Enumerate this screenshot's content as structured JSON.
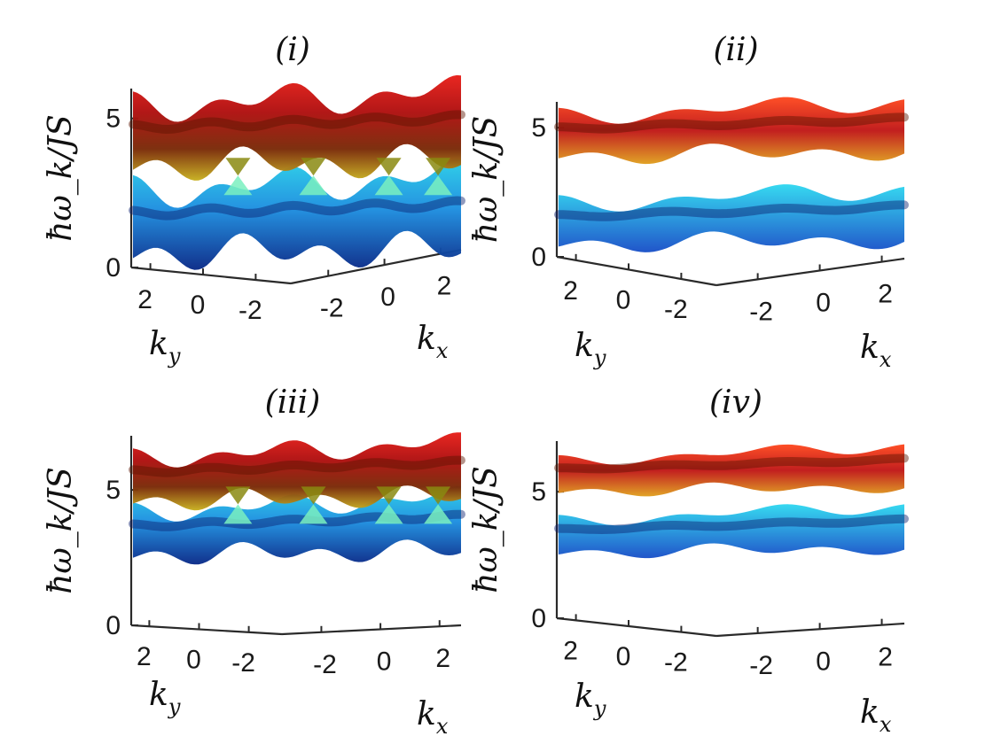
{
  "chart_data": [
    {
      "type": "surface",
      "panel_label": "(i)",
      "ylabel": "ħω_k/JS",
      "zticks": [
        "0",
        "5"
      ],
      "zlim": [
        0,
        6
      ],
      "xlabel": "k_x",
      "ylabel_k": "k_y",
      "kx_ticks": [
        "-2",
        "0",
        "2"
      ],
      "ky_ticks": [
        "2",
        "0",
        "-2"
      ],
      "bands": [
        {
          "name": "upper",
          "min": 3.2,
          "max": 6.0,
          "colormap": "hot"
        },
        {
          "name": "lower",
          "min": 0.2,
          "max": 3.2,
          "colormap": "cool"
        }
      ],
      "gap": 0.0
    },
    {
      "type": "surface",
      "panel_label": "(ii)",
      "ylabel": "ħω_k/JS",
      "zticks": [
        "0",
        "5"
      ],
      "zlim": [
        0,
        6
      ],
      "xlabel": "k_x",
      "ylabel_k": "k_y",
      "kx_ticks": [
        "-2",
        "0",
        "2"
      ],
      "ky_ticks": [
        "2",
        "0",
        "-2"
      ],
      "bands": [
        {
          "name": "upper",
          "min": 3.8,
          "max": 6.0,
          "colormap": "hot"
        },
        {
          "name": "lower",
          "min": 0.3,
          "max": 2.7,
          "colormap": "cool"
        }
      ],
      "gap": 1.1
    },
    {
      "type": "surface",
      "panel_label": "(iii)",
      "ylabel": "ħω_k/JS",
      "zticks": [
        "0",
        "5"
      ],
      "zlim": [
        0,
        7
      ],
      "xlabel": "k_x",
      "ylabel_k": "k_y",
      "kx_ticks": [
        "-2",
        "0",
        "2"
      ],
      "ky_ticks": [
        "2",
        "0",
        "-2"
      ],
      "bands": [
        {
          "name": "upper",
          "min": 4.6,
          "max": 6.6,
          "colormap": "hot"
        },
        {
          "name": "lower",
          "min": 2.6,
          "max": 4.6,
          "colormap": "cool"
        }
      ],
      "gap": 0.0
    },
    {
      "type": "surface",
      "panel_label": "(iv)",
      "ylabel": "ħω_k/JS",
      "zticks": [
        "0",
        "5"
      ],
      "zlim": [
        0,
        7
      ],
      "xlabel": "k_x",
      "ylabel_k": "k_y",
      "kx_ticks": [
        "-2",
        "0",
        "2"
      ],
      "ky_ticks": [
        "2",
        "0",
        "-2"
      ],
      "bands": [
        {
          "name": "upper",
          "min": 5.1,
          "max": 6.6,
          "colormap": "hot"
        },
        {
          "name": "lower",
          "min": 2.6,
          "max": 4.3,
          "colormap": "cool"
        }
      ],
      "gap": 0.8
    }
  ]
}
